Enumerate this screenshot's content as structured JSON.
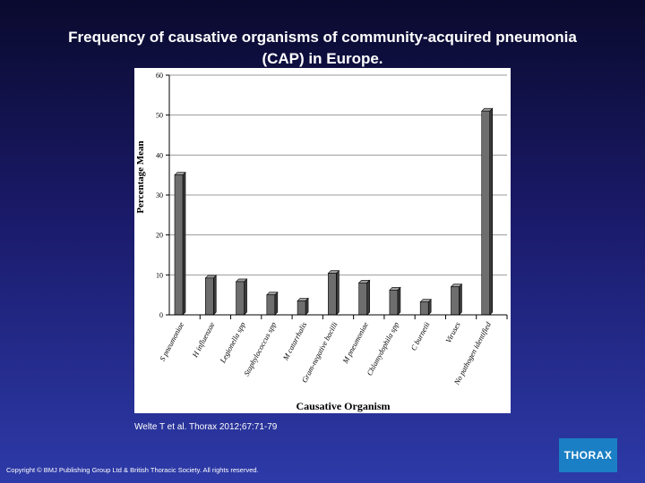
{
  "slide": {
    "title_line1": "Frequency of causative organisms of community-acquired pneumonia",
    "title_line2": "(CAP) in Europe.",
    "citation": "Welte T et al. Thorax 2012;67:71-79",
    "copyright": "Copyright © BMJ Publishing Group Ltd & British Thoracic Society. All rights reserved.",
    "logo_text": "THORAX",
    "colors": {
      "background_top": "#0a0a2e",
      "background_bottom": "#2d3aa8",
      "logo": "#1a7fc4",
      "bar": "#6e6e6e"
    }
  },
  "chart_data": {
    "type": "bar",
    "xlabel": "Causative Organism",
    "ylabel": "Percentage Mean",
    "ylim": [
      0,
      60
    ],
    "yticks": [
      0,
      10,
      20,
      30,
      40,
      50,
      60
    ],
    "grid": true,
    "categories": [
      "S pneumoniae",
      "H influenzae",
      "Legionella spp",
      "Staphylococcus spp",
      "M catarrhalis",
      "Gram-negative bacilli",
      "M pneumoniae",
      "Chlamydophila spp",
      "C burnetii",
      "Viruses",
      "No pathogen identified"
    ],
    "values": [
      35,
      9.2,
      8.3,
      5,
      3.5,
      10.4,
      8,
      6.2,
      3.2,
      7,
      51
    ]
  }
}
